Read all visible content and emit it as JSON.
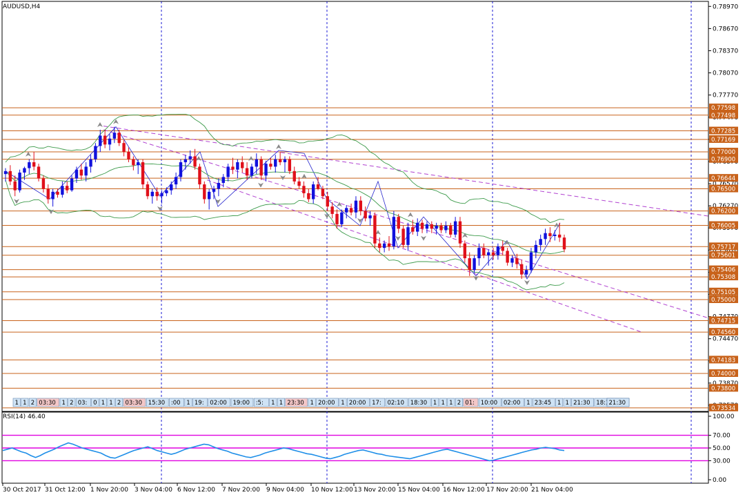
{
  "chart_data": {
    "type": "candlestick",
    "symbol_label": "AUDUSD,H4",
    "price_axis": {
      "range": [
        0.735,
        0.79
      ],
      "tick_labels": [
        "0.78970",
        "0.78670",
        "0.78370",
        "0.78070",
        "0.77770",
        "0.77470",
        "0.77170",
        "0.76870",
        "0.76570",
        "0.76270",
        "0.75970",
        "0.75670",
        "0.75370",
        "0.75070",
        "0.74770",
        "0.74470",
        "0.74170",
        "0.73870",
        "0.73570"
      ]
    },
    "time_axis": {
      "tick_labels": [
        "30 Oct 2017",
        "31 Oct 12:00",
        "1 Nov 20:00",
        "3 Nov 04:00",
        "6 Nov 12:00",
        "7 Nov 20:00",
        "9 Nov 04:00",
        "10 Nov 12:00",
        "13 Nov 20:00",
        "15 Nov 04:00",
        "16 Nov 12:00",
        "17 Nov 20:00",
        "21 Nov 04:00"
      ]
    },
    "levels": [
      "0.77598",
      "0.77498",
      "0.77285",
      "0.77169",
      "0.77000",
      "0.76900",
      "0.76644",
      "0.76500",
      "0.76200",
      "0.76005",
      "0.75717",
      "0.75601",
      "0.75406",
      "0.75308",
      "0.75105",
      "0.75000",
      "0.74715",
      "0.74560",
      "0.74183",
      "0.74000",
      "0.73800",
      "0.73534"
    ],
    "candles": [
      {
        "o": 0.767,
        "h": 0.7678,
        "l": 0.766,
        "c": 0.7674
      },
      {
        "o": 0.7674,
        "h": 0.7682,
        "l": 0.7655,
        "c": 0.766
      },
      {
        "o": 0.766,
        "h": 0.7668,
        "l": 0.764,
        "c": 0.7648
      },
      {
        "o": 0.7648,
        "h": 0.7676,
        "l": 0.7645,
        "c": 0.7672
      },
      {
        "o": 0.7672,
        "h": 0.768,
        "l": 0.7662,
        "c": 0.7678
      },
      {
        "o": 0.7678,
        "h": 0.769,
        "l": 0.767,
        "c": 0.7686
      },
      {
        "o": 0.7686,
        "h": 0.77,
        "l": 0.7675,
        "c": 0.768
      },
      {
        "o": 0.768,
        "h": 0.7684,
        "l": 0.766,
        "c": 0.7664
      },
      {
        "o": 0.7664,
        "h": 0.7668,
        "l": 0.7645,
        "c": 0.765
      },
      {
        "o": 0.765,
        "h": 0.7656,
        "l": 0.763,
        "c": 0.7636
      },
      {
        "o": 0.7636,
        "h": 0.765,
        "l": 0.7626,
        "c": 0.7646
      },
      {
        "o": 0.7646,
        "h": 0.765,
        "l": 0.7638,
        "c": 0.7642
      },
      {
        "o": 0.7642,
        "h": 0.766,
        "l": 0.7638,
        "c": 0.7654
      },
      {
        "o": 0.7654,
        "h": 0.766,
        "l": 0.7644,
        "c": 0.7648
      },
      {
        "o": 0.7648,
        "h": 0.7668,
        "l": 0.7646,
        "c": 0.7664
      },
      {
        "o": 0.7664,
        "h": 0.768,
        "l": 0.7658,
        "c": 0.7676
      },
      {
        "o": 0.7676,
        "h": 0.7684,
        "l": 0.7662,
        "c": 0.7668
      },
      {
        "o": 0.7668,
        "h": 0.7686,
        "l": 0.766,
        "c": 0.768
      },
      {
        "o": 0.768,
        "h": 0.7696,
        "l": 0.7672,
        "c": 0.769
      },
      {
        "o": 0.769,
        "h": 0.7712,
        "l": 0.7686,
        "c": 0.7708
      },
      {
        "o": 0.7708,
        "h": 0.773,
        "l": 0.77,
        "c": 0.7722
      },
      {
        "o": 0.7722,
        "h": 0.773,
        "l": 0.7705,
        "c": 0.771
      },
      {
        "o": 0.771,
        "h": 0.7724,
        "l": 0.7702,
        "c": 0.7718
      },
      {
        "o": 0.7718,
        "h": 0.7734,
        "l": 0.7712,
        "c": 0.7726
      },
      {
        "o": 0.7726,
        "h": 0.773,
        "l": 0.7708,
        "c": 0.7712
      },
      {
        "o": 0.7712,
        "h": 0.7716,
        "l": 0.7694,
        "c": 0.77
      },
      {
        "o": 0.77,
        "h": 0.7706,
        "l": 0.7686,
        "c": 0.769
      },
      {
        "o": 0.769,
        "h": 0.7694,
        "l": 0.7675,
        "c": 0.7682
      },
      {
        "o": 0.7682,
        "h": 0.769,
        "l": 0.767,
        "c": 0.7686
      },
      {
        "o": 0.7686,
        "h": 0.769,
        "l": 0.765,
        "c": 0.7656
      },
      {
        "o": 0.7656,
        "h": 0.766,
        "l": 0.7636,
        "c": 0.764
      },
      {
        "o": 0.764,
        "h": 0.765,
        "l": 0.763,
        "c": 0.7646
      },
      {
        "o": 0.7646,
        "h": 0.7652,
        "l": 0.7634,
        "c": 0.764
      },
      {
        "o": 0.764,
        "h": 0.7648,
        "l": 0.763,
        "c": 0.7644
      },
      {
        "o": 0.7644,
        "h": 0.7652,
        "l": 0.764,
        "c": 0.7648
      },
      {
        "o": 0.7648,
        "h": 0.766,
        "l": 0.7642,
        "c": 0.7656
      },
      {
        "o": 0.7656,
        "h": 0.7672,
        "l": 0.765,
        "c": 0.7666
      },
      {
        "o": 0.7666,
        "h": 0.769,
        "l": 0.766,
        "c": 0.7686
      },
      {
        "o": 0.7686,
        "h": 0.7696,
        "l": 0.7676,
        "c": 0.769
      },
      {
        "o": 0.769,
        "h": 0.7702,
        "l": 0.7684,
        "c": 0.7694
      },
      {
        "o": 0.7694,
        "h": 0.7704,
        "l": 0.7676,
        "c": 0.768
      },
      {
        "o": 0.768,
        "h": 0.7684,
        "l": 0.765,
        "c": 0.7656
      },
      {
        "o": 0.7656,
        "h": 0.766,
        "l": 0.763,
        "c": 0.7636
      },
      {
        "o": 0.7636,
        "h": 0.765,
        "l": 0.7622,
        "c": 0.7646
      },
      {
        "o": 0.7646,
        "h": 0.7654,
        "l": 0.7636,
        "c": 0.765
      },
      {
        "o": 0.765,
        "h": 0.7664,
        "l": 0.764,
        "c": 0.7658
      },
      {
        "o": 0.7658,
        "h": 0.767,
        "l": 0.7652,
        "c": 0.7666
      },
      {
        "o": 0.7666,
        "h": 0.7684,
        "l": 0.766,
        "c": 0.768
      },
      {
        "o": 0.768,
        "h": 0.7692,
        "l": 0.767,
        "c": 0.7676
      },
      {
        "o": 0.7676,
        "h": 0.769,
        "l": 0.7664,
        "c": 0.7686
      },
      {
        "o": 0.7686,
        "h": 0.7694,
        "l": 0.7672,
        "c": 0.7678
      },
      {
        "o": 0.7678,
        "h": 0.7686,
        "l": 0.7662,
        "c": 0.7668
      },
      {
        "o": 0.7668,
        "h": 0.7684,
        "l": 0.7664,
        "c": 0.768
      },
      {
        "o": 0.768,
        "h": 0.7698,
        "l": 0.767,
        "c": 0.769
      },
      {
        "o": 0.769,
        "h": 0.7694,
        "l": 0.7662,
        "c": 0.7668
      },
      {
        "o": 0.7668,
        "h": 0.7688,
        "l": 0.766,
        "c": 0.7684
      },
      {
        "o": 0.7684,
        "h": 0.7692,
        "l": 0.7676,
        "c": 0.768
      },
      {
        "o": 0.768,
        "h": 0.7696,
        "l": 0.7672,
        "c": 0.769
      },
      {
        "o": 0.769,
        "h": 0.77,
        "l": 0.7682,
        "c": 0.7686
      },
      {
        "o": 0.7686,
        "h": 0.7694,
        "l": 0.7672,
        "c": 0.769
      },
      {
        "o": 0.769,
        "h": 0.7694,
        "l": 0.767,
        "c": 0.7674
      },
      {
        "o": 0.7674,
        "h": 0.768,
        "l": 0.7656,
        "c": 0.766
      },
      {
        "o": 0.766,
        "h": 0.7666,
        "l": 0.765,
        "c": 0.7654
      },
      {
        "o": 0.7654,
        "h": 0.766,
        "l": 0.7638,
        "c": 0.7644
      },
      {
        "o": 0.7644,
        "h": 0.765,
        "l": 0.7632,
        "c": 0.7636
      },
      {
        "o": 0.7636,
        "h": 0.766,
        "l": 0.763,
        "c": 0.7656
      },
      {
        "o": 0.7656,
        "h": 0.7666,
        "l": 0.7648,
        "c": 0.765
      },
      {
        "o": 0.765,
        "h": 0.7654,
        "l": 0.7636,
        "c": 0.764
      },
      {
        "o": 0.764,
        "h": 0.7646,
        "l": 0.762,
        "c": 0.7626
      },
      {
        "o": 0.7626,
        "h": 0.7632,
        "l": 0.761,
        "c": 0.7616
      },
      {
        "o": 0.7616,
        "h": 0.7622,
        "l": 0.7596,
        "c": 0.7602
      },
      {
        "o": 0.7602,
        "h": 0.7622,
        "l": 0.7598,
        "c": 0.7618
      },
      {
        "o": 0.7618,
        "h": 0.7628,
        "l": 0.761,
        "c": 0.7624
      },
      {
        "o": 0.7624,
        "h": 0.763,
        "l": 0.7614,
        "c": 0.7618
      },
      {
        "o": 0.7618,
        "h": 0.764,
        "l": 0.761,
        "c": 0.7634
      },
      {
        "o": 0.7634,
        "h": 0.764,
        "l": 0.7614,
        "c": 0.762
      },
      {
        "o": 0.762,
        "h": 0.7626,
        "l": 0.7606,
        "c": 0.761
      },
      {
        "o": 0.761,
        "h": 0.762,
        "l": 0.76,
        "c": 0.7614
      },
      {
        "o": 0.7614,
        "h": 0.7618,
        "l": 0.757,
        "c": 0.7576
      },
      {
        "o": 0.7576,
        "h": 0.7584,
        "l": 0.7564,
        "c": 0.757
      },
      {
        "o": 0.757,
        "h": 0.758,
        "l": 0.7564,
        "c": 0.7576
      },
      {
        "o": 0.7576,
        "h": 0.7586,
        "l": 0.7566,
        "c": 0.7572
      },
      {
        "o": 0.7572,
        "h": 0.762,
        "l": 0.7568,
        "c": 0.7612
      },
      {
        "o": 0.7612,
        "h": 0.7616,
        "l": 0.759,
        "c": 0.7596
      },
      {
        "o": 0.7596,
        "h": 0.76,
        "l": 0.757,
        "c": 0.7574
      },
      {
        "o": 0.7574,
        "h": 0.7604,
        "l": 0.7566,
        "c": 0.7598
      },
      {
        "o": 0.7598,
        "h": 0.7608,
        "l": 0.7588,
        "c": 0.7592
      },
      {
        "o": 0.7592,
        "h": 0.761,
        "l": 0.7586,
        "c": 0.7604
      },
      {
        "o": 0.7604,
        "h": 0.7608,
        "l": 0.759,
        "c": 0.7596
      },
      {
        "o": 0.7596,
        "h": 0.7606,
        "l": 0.759,
        "c": 0.7602
      },
      {
        "o": 0.7602,
        "h": 0.7606,
        "l": 0.759,
        "c": 0.7596
      },
      {
        "o": 0.7596,
        "h": 0.7604,
        "l": 0.7588,
        "c": 0.76
      },
      {
        "o": 0.76,
        "h": 0.7604,
        "l": 0.759,
        "c": 0.7594
      },
      {
        "o": 0.7594,
        "h": 0.7606,
        "l": 0.759,
        "c": 0.76
      },
      {
        "o": 0.76,
        "h": 0.7604,
        "l": 0.7584,
        "c": 0.7588
      },
      {
        "o": 0.7588,
        "h": 0.7612,
        "l": 0.7584,
        "c": 0.7606
      },
      {
        "o": 0.7606,
        "h": 0.7612,
        "l": 0.757,
        "c": 0.7576
      },
      {
        "o": 0.7576,
        "h": 0.758,
        "l": 0.755,
        "c": 0.7556
      },
      {
        "o": 0.7556,
        "h": 0.7564,
        "l": 0.7532,
        "c": 0.754
      },
      {
        "o": 0.754,
        "h": 0.756,
        "l": 0.7536,
        "c": 0.7556
      },
      {
        "o": 0.7556,
        "h": 0.7576,
        "l": 0.7546,
        "c": 0.757
      },
      {
        "o": 0.757,
        "h": 0.7576,
        "l": 0.7556,
        "c": 0.756
      },
      {
        "o": 0.756,
        "h": 0.7568,
        "l": 0.7546,
        "c": 0.7564
      },
      {
        "o": 0.7564,
        "h": 0.757,
        "l": 0.7554,
        "c": 0.756
      },
      {
        "o": 0.756,
        "h": 0.7576,
        "l": 0.7554,
        "c": 0.7572
      },
      {
        "o": 0.7572,
        "h": 0.758,
        "l": 0.756,
        "c": 0.7566
      },
      {
        "o": 0.7566,
        "h": 0.757,
        "l": 0.7546,
        "c": 0.755
      },
      {
        "o": 0.755,
        "h": 0.756,
        "l": 0.7544,
        "c": 0.7556
      },
      {
        "o": 0.7556,
        "h": 0.7562,
        "l": 0.7542,
        "c": 0.7548
      },
      {
        "o": 0.7548,
        "h": 0.7554,
        "l": 0.7528,
        "c": 0.7534
      },
      {
        "o": 0.7534,
        "h": 0.7546,
        "l": 0.753,
        "c": 0.754
      },
      {
        "o": 0.754,
        "h": 0.757,
        "l": 0.7536,
        "c": 0.7564
      },
      {
        "o": 0.7564,
        "h": 0.758,
        "l": 0.7556,
        "c": 0.7574
      },
      {
        "o": 0.7574,
        "h": 0.7588,
        "l": 0.7566,
        "c": 0.7582
      },
      {
        "o": 0.7582,
        "h": 0.7596,
        "l": 0.7574,
        "c": 0.759
      },
      {
        "o": 0.759,
        "h": 0.7598,
        "l": 0.7578,
        "c": 0.7586
      },
      {
        "o": 0.7586,
        "h": 0.7594,
        "l": 0.758,
        "c": 0.7588
      },
      {
        "o": 0.7588,
        "h": 0.7604,
        "l": 0.7578,
        "c": 0.7584
      },
      {
        "o": 0.7584,
        "h": 0.7588,
        "l": 0.7564,
        "c": 0.7568
      }
    ],
    "oscillator": {
      "label": "RSI(14) 46.40",
      "axis_range": [
        0,
        100
      ],
      "tick_labels": [
        "100.00",
        "70.00",
        "50.00",
        "30.00",
        "0.00"
      ],
      "levels": [
        70,
        50,
        30
      ],
      "values": [
        46,
        48,
        50,
        47,
        44,
        42,
        38,
        35,
        38,
        42,
        45,
        48,
        52,
        55,
        58,
        56,
        53,
        50,
        48,
        46,
        44,
        42,
        38,
        35,
        34,
        37,
        40,
        43,
        46,
        48,
        50,
        52,
        49,
        46,
        44,
        42,
        40,
        42,
        45,
        48,
        50,
        52,
        54,
        56,
        55,
        52,
        49,
        47,
        45,
        42,
        40,
        38,
        36,
        35,
        37,
        39,
        42,
        44,
        46,
        48,
        50,
        49,
        47,
        45,
        43,
        41,
        40,
        38,
        36,
        34,
        33,
        35,
        37,
        40,
        42,
        44,
        46,
        47,
        45,
        43,
        41,
        40,
        38,
        37,
        36,
        35,
        34,
        33,
        35,
        37,
        39,
        41,
        43,
        45,
        47,
        48,
        46,
        44,
        42,
        40,
        38,
        36,
        34,
        32,
        30,
        31,
        33,
        35,
        37,
        39,
        41,
        43,
        45,
        47,
        48,
        50,
        51,
        50,
        49,
        47,
        46
      ]
    },
    "session_tags": [
      "1",
      "1",
      "2",
      "03:30",
      "1",
      "2",
      "03:",
      "0",
      "1",
      "1",
      "2",
      "03:30",
      "15:30",
      ":00",
      "1",
      "19:",
      "02:00",
      "19:00",
      ":5:",
      "1",
      "1",
      "23:30",
      "1",
      "20:00",
      "1",
      "20:00",
      "17:",
      "02:10",
      "18:30",
      "1",
      "1",
      "1",
      "2",
      "01:",
      "10:00",
      "02:00",
      "1",
      "23:45",
      "1",
      "1",
      "21:30",
      "18:30",
      "11:",
      "1",
      "23:35",
      "21:00",
      "21:30"
    ]
  }
}
